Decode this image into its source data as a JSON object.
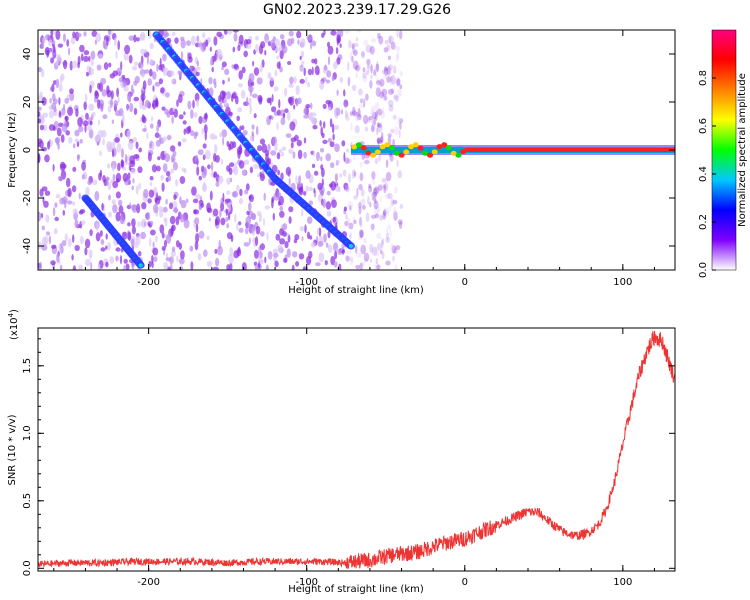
{
  "title": "GN02.2023.239.17.29.G26",
  "chart_data": [
    {
      "type": "heatmap",
      "xlabel": "Height of straight line (km)",
      "ylabel": "Frequency (Hz)",
      "xlim": [
        -270,
        133
      ],
      "ylim": [
        -50,
        50
      ],
      "xticks": [
        -200,
        -100,
        0,
        100
      ],
      "yticks": [
        -40,
        -20,
        0,
        20,
        40
      ],
      "colorbar": {
        "label": "Normalized spectral amplitude",
        "ticks": [
          "0.0",
          "0.2",
          "0.4",
          "0.6",
          "0.8"
        ],
        "range": [
          0,
          1
        ],
        "colors": [
          "#ffffff",
          "#7f00ff",
          "#0000ff",
          "#00c8ff",
          "#00ff00",
          "#ffff00",
          "#ff8000",
          "#ff0000",
          "#ff0080"
        ]
      },
      "features": [
        {
          "name": "diagonal streak",
          "points": [
            [
              -195,
              48
            ],
            [
              -120,
              -12
            ],
            [
              -72,
              -40
            ]
          ]
        },
        {
          "name": "diagonal streak",
          "points": [
            [
              -240,
              -20
            ],
            [
              -205,
              -48
            ]
          ]
        },
        {
          "name": "zero-frequency line",
          "points": [
            [
              -72,
              0
            ],
            [
              133,
              0
            ]
          ]
        }
      ]
    },
    {
      "type": "line",
      "xlabel": "Height of straight line (km)",
      "ylabel": "SNR (10 * v/v)",
      "yscale_label": "(x10",
      "yscale_exp": "4",
      "yscale_close": ")",
      "xlim": [
        -270,
        133
      ],
      "ylim": [
        -0.02,
        1.78
      ],
      "xticks": [
        -200,
        -100,
        0,
        100
      ],
      "yticks": [
        "0.0",
        "0.5",
        "1.0",
        "1.5"
      ],
      "series": [
        {
          "color": "#ee3333",
          "x": [
            -270,
            -250,
            -230,
            -210,
            -190,
            -170,
            -150,
            -130,
            -110,
            -90,
            -75,
            -60,
            -45,
            -30,
            -15,
            0,
            10,
            20,
            30,
            40,
            47,
            55,
            62,
            70,
            78,
            85,
            90,
            95,
            100,
            105,
            110,
            115,
            120,
            125,
            130,
            133
          ],
          "y": [
            0.03,
            0.04,
            0.04,
            0.05,
            0.05,
            0.05,
            0.04,
            0.05,
            0.05,
            0.05,
            0.04,
            0.06,
            0.1,
            0.12,
            0.18,
            0.22,
            0.27,
            0.32,
            0.37,
            0.42,
            0.41,
            0.33,
            0.27,
            0.24,
            0.26,
            0.33,
            0.45,
            0.65,
            0.92,
            1.18,
            1.42,
            1.6,
            1.72,
            1.68,
            1.5,
            1.4
          ]
        }
      ]
    }
  ]
}
